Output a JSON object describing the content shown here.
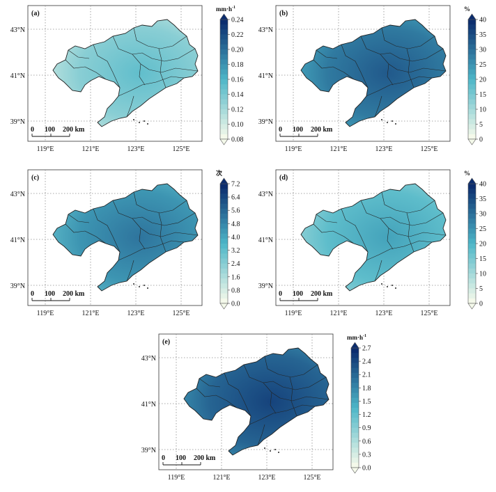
{
  "panels": [
    {
      "label": "(a)",
      "unit": "mm·h",
      "unit_sup": "-1",
      "colorbar_ticks": [
        "0.24",
        "0.22",
        "0.20",
        "0.18",
        "0.16",
        "0.14",
        "0.12",
        "0.10",
        "0.08"
      ],
      "fill_level": 0.32
    },
    {
      "label": "(b)",
      "unit": "%",
      "colorbar_ticks": [
        "40",
        "35",
        "30",
        "25",
        "20",
        "15",
        "10",
        "5",
        "0"
      ],
      "fill_level": 0.72
    },
    {
      "label": "(c)",
      "unit": "次",
      "colorbar_ticks": [
        "7.2",
        "6.4",
        "5.6",
        "4.8",
        "4.0",
        "3.2",
        "2.4",
        "1.6",
        "0.8",
        "0.0"
      ],
      "fill_level": 0.62
    },
    {
      "label": "(d)",
      "unit": "%",
      "colorbar_ticks": [
        "40",
        "35",
        "30",
        "25",
        "20",
        "15",
        "10",
        "5",
        "0"
      ],
      "fill_level": 0.45
    },
    {
      "label": "(e)",
      "unit": "mm·h",
      "unit_sup": "-1",
      "colorbar_ticks": [
        "2.7",
        "2.4",
        "2.1",
        "1.8",
        "1.5",
        "1.2",
        "0.9",
        "0.6",
        "0.3",
        "0.0"
      ],
      "fill_level": 0.8
    }
  ],
  "lat_labels": [
    "43°N",
    "41°N",
    "39°N"
  ],
  "lon_labels": [
    "119°E",
    "121°E",
    "123°E",
    "125°E"
  ],
  "scalebar": {
    "labels": [
      "0",
      "100",
      "200 km"
    ]
  },
  "colors": {
    "ramp_low": "#f4f9ea",
    "ramp_mid": "#4db6c8",
    "ramp_high": "#0c2d6e",
    "frame": "#333333",
    "grid": "#8a8a8a",
    "border": "#222222"
  }
}
